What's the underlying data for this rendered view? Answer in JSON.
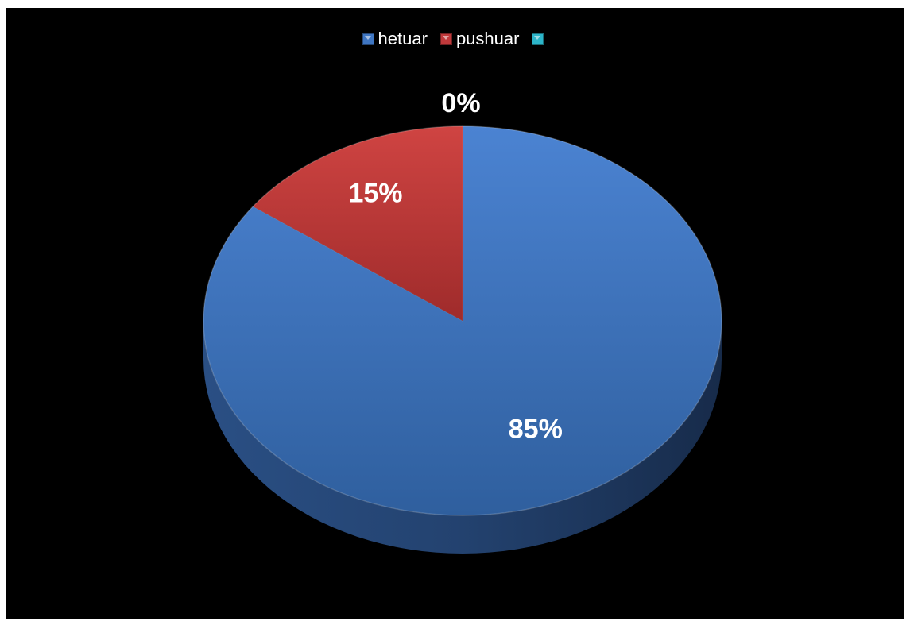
{
  "chart_data": {
    "type": "pie",
    "style": "3d",
    "categories": [
      "hetuar",
      "pushuar",
      ""
    ],
    "values": [
      85,
      15,
      0
    ],
    "data_labels": [
      "85%",
      "15%",
      "0%"
    ],
    "colors": [
      "#3f76c2",
      "#c0393b",
      "#2cb5c9"
    ],
    "legend_position": "top",
    "background": "#000000"
  }
}
